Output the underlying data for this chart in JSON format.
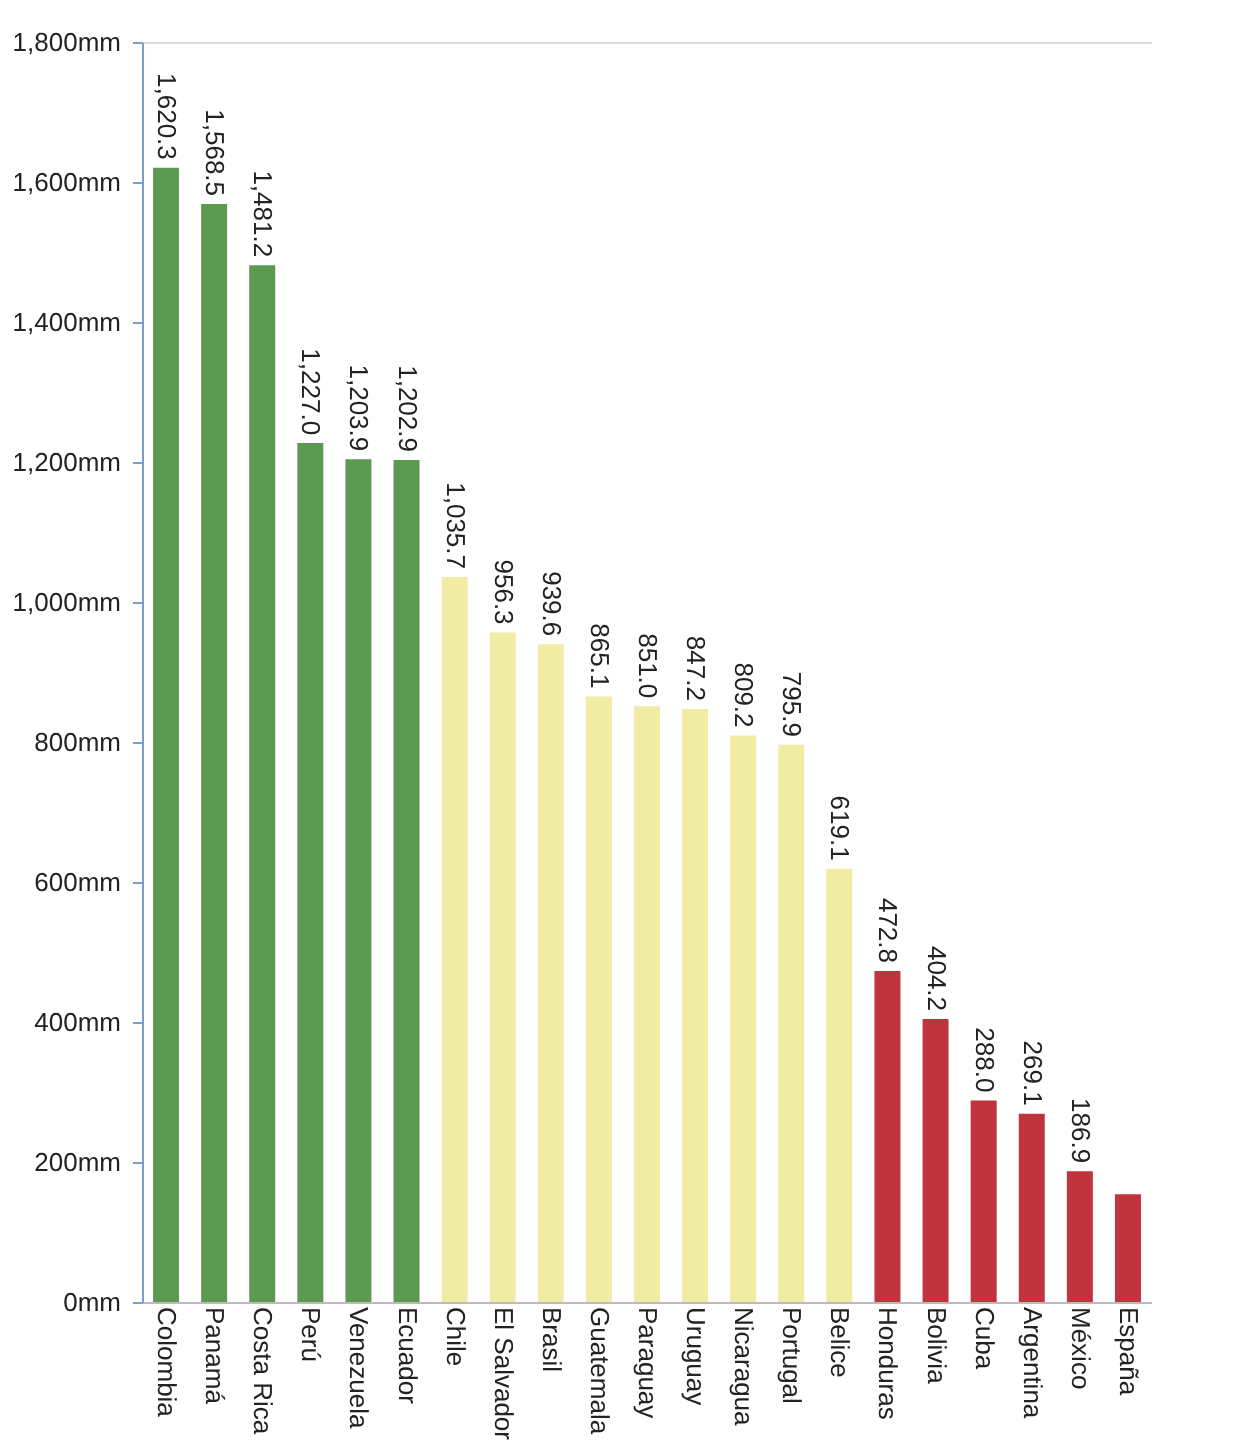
{
  "chart_data": {
    "type": "bar",
    "categories": [
      "Colombia",
      "Panamá",
      "Costa Rica",
      "Perú",
      "Venezuela",
      "Ecuador",
      "Chile",
      "El Salvador",
      "Brasil",
      "Guatemala",
      "Paraguay",
      "Uruguay",
      "Nicaragua",
      "Portugal",
      "Belice",
      "Honduras",
      "Bolivia",
      "Cuba",
      "Argentina",
      "México",
      "España"
    ],
    "values": [
      1620.3,
      1568.5,
      1481.2,
      1227.0,
      1203.9,
      1202.9,
      1035.7,
      956.3,
      939.6,
      865.1,
      851.0,
      847.2,
      809.2,
      795.9,
      619.1,
      472.8,
      404.2,
      288.0,
      269.1,
      186.9,
      154
    ],
    "value_labels": [
      "1,620.3",
      "1,568.5",
      "1,481.2",
      "1,227.0",
      "1,203.9",
      "1,202.9",
      "1,035.7",
      "956.3",
      "939.6",
      "865.1",
      "851.0",
      "847.2",
      "809.2",
      "795.9",
      "619.1",
      "472.8",
      "404.2",
      "288.0",
      "269.1",
      "186.9",
      null
    ],
    "colors": [
      "#5b9a50",
      "#5b9a50",
      "#5b9a50",
      "#5b9a50",
      "#5b9a50",
      "#5b9a50",
      "#f1eca4",
      "#f1eca4",
      "#f1eca4",
      "#f1eca4",
      "#f1eca4",
      "#f1eca4",
      "#f1eca4",
      "#f1eca4",
      "#f1eca4",
      "#c1333d",
      "#c1333d",
      "#c1333d",
      "#c1333d",
      "#c1333d",
      "#c1333d"
    ],
    "ylim": [
      0,
      1800
    ],
    "yticks": [
      {
        "value": 0,
        "label": "0mm"
      },
      {
        "value": 200,
        "label": "200mm"
      },
      {
        "value": 400,
        "label": "400mm"
      },
      {
        "value": 600,
        "label": "600mm"
      },
      {
        "value": 800,
        "label": "800mm"
      },
      {
        "value": 1000,
        "label": "1,000mm"
      },
      {
        "value": 1200,
        "label": "1,200mm"
      },
      {
        "value": 1400,
        "label": "1,400mm"
      },
      {
        "value": 1600,
        "label": "1,600mm"
      },
      {
        "value": 1800,
        "label": "1,800mm"
      }
    ],
    "grid": false
  }
}
